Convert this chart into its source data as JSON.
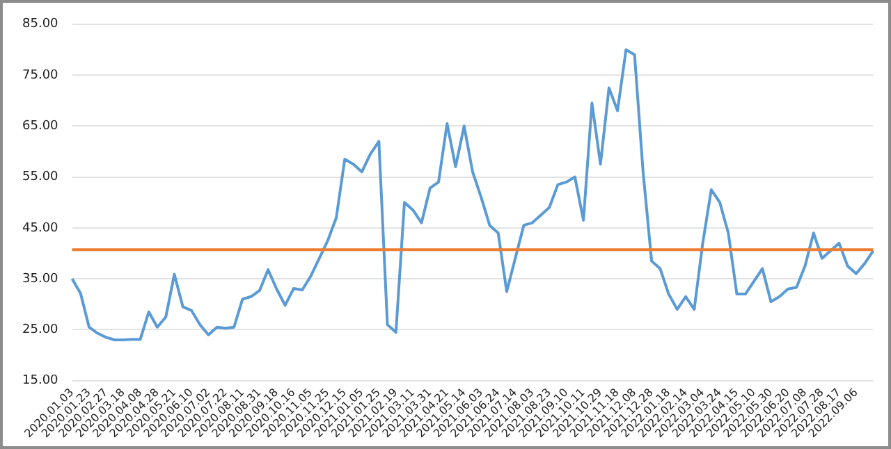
{
  "chart_data": {
    "type": "line",
    "categories": [
      "2020.01.03",
      null,
      "2020.01.23",
      null,
      "2020.02.27",
      null,
      "2020.03.18",
      null,
      "2020.04.08",
      null,
      "2020.04.28",
      null,
      "2020.05.21",
      null,
      "2020.06.10",
      null,
      "2020.07.02",
      null,
      "2020.07.22",
      null,
      "2020.08.11",
      null,
      "2020.08.31",
      null,
      "2020.09.18",
      null,
      "2020.10.16",
      null,
      "2020.11.05",
      null,
      "2020.11.25",
      null,
      "2020.12.15",
      null,
      "2021.01.05",
      null,
      "2021.01.25",
      null,
      "2021.02.19",
      null,
      "2021.03.11",
      null,
      "2021.03.31",
      null,
      "2021.04.21",
      null,
      "2021.05.14",
      null,
      "2021.06.03",
      null,
      "2021.06.24",
      null,
      "2021.07.14",
      null,
      "2021.08.03",
      null,
      "2021.08.23",
      null,
      "2021.09.10",
      null,
      "2021.10.11",
      null,
      "2021.10.29",
      null,
      "2021.11.18",
      null,
      "2021.12.08",
      null,
      "2021.12.28",
      null,
      "2022.01.18",
      null,
      "2022.02.14",
      null,
      "2022.03.04",
      null,
      "2022.03.24",
      null,
      "2022.04.15",
      null,
      "2022.05.10",
      null,
      "2022.05.30",
      null,
      "2022.06.20",
      null,
      "2022.07.08",
      null,
      "2022.07.28",
      null,
      "2022.08.17",
      null,
      "2022.09.06",
      null,
      null
    ],
    "series": [
      {
        "color": "#5b9bd5",
        "values": [
          35,
          32.1,
          25.5,
          24.3,
          23.5,
          23,
          23,
          23.1,
          23.1,
          28.5,
          25.5,
          27.5,
          35.9,
          29.5,
          28.8,
          26,
          24,
          25.5,
          25.3,
          25.5,
          31,
          31.5,
          32.7,
          36.8,
          33,
          29.8,
          33.1,
          32.8,
          35.5,
          39,
          42.5,
          47,
          58.5,
          57.5,
          56,
          59.5,
          62,
          26,
          24.5,
          50,
          48.5,
          46,
          52.8,
          54,
          65.5,
          57,
          65,
          56,
          51,
          45.5,
          44,
          32.5,
          39,
          45.5,
          46,
          47.5,
          49,
          53.5,
          54,
          55,
          46.5,
          69.5,
          57.5,
          72.5,
          68,
          80,
          79,
          56,
          38.5,
          37,
          32,
          29,
          31.5,
          29,
          42,
          52.5,
          50,
          44,
          32,
          32,
          34.5,
          37,
          30.5,
          31.5,
          33,
          33.3,
          37.5,
          44,
          39,
          40.5,
          42,
          37.5,
          36,
          38,
          40.5
        ]
      }
    ],
    "ylim": [
      15,
      85
    ],
    "yticks": [
      {
        "value": 15,
        "label": "15.00"
      },
      {
        "value": 25,
        "label": "25.00"
      },
      {
        "value": 35,
        "label": "35.00"
      },
      {
        "value": 45,
        "label": "45.00"
      },
      {
        "value": 55,
        "label": "55.00"
      },
      {
        "value": 65,
        "label": "65.00"
      },
      {
        "value": 75,
        "label": "75.00"
      },
      {
        "value": 85,
        "label": "85.00"
      }
    ],
    "ref_lines": [
      {
        "axis": "y",
        "value": 40.7,
        "color": "#ed7d31"
      }
    ],
    "grid": "y",
    "marker": "none",
    "line_style": "solid",
    "legend": false
  }
}
